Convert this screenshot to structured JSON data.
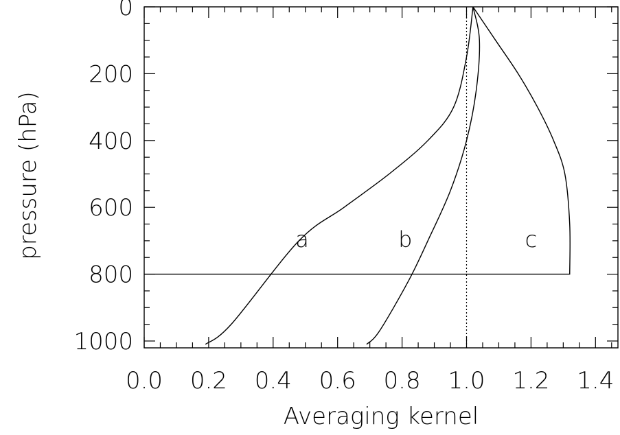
{
  "chart_data": {
    "type": "line",
    "xlabel": "Averaging kernel",
    "ylabel": "pressure (hPa)",
    "xlim": [
      0.0,
      1.5
    ],
    "ylim": [
      1020,
      0
    ],
    "y_inverted": true,
    "xticks": [
      "0.0",
      "0.2",
      "0.4",
      "0.6",
      "0.8",
      "1.0",
      "1.2",
      "1.4"
    ],
    "xtick_values": [
      0.0,
      0.2,
      0.4,
      0.6,
      0.8,
      1.0,
      1.2,
      1.4
    ],
    "yticks": [
      "0",
      "200",
      "400",
      "600",
      "800",
      "1000"
    ],
    "ytick_values": [
      0,
      200,
      400,
      600,
      800,
      1000
    ],
    "reference_lines": [
      {
        "orientation": "vertical",
        "x": 1.0,
        "style": "dotted"
      }
    ],
    "series": [
      {
        "name": "a",
        "x": [
          1.02,
          1.0,
          0.96,
          0.88,
          0.76,
          0.62,
          0.48,
          0.27,
          0.19
        ],
        "y": [
          0,
          150,
          300,
          400,
          500,
          600,
          700,
          950,
          1010
        ]
      },
      {
        "name": "b",
        "x": [
          1.02,
          1.04,
          1.03,
          1.0,
          0.95,
          0.88,
          0.82,
          0.73,
          0.69
        ],
        "y": [
          0,
          100,
          250,
          400,
          550,
          700,
          820,
          970,
          1010
        ]
      },
      {
        "name": "c",
        "x": [
          1.02,
          1.09,
          1.16,
          1.22,
          1.27,
          1.305,
          1.32,
          1.32,
          0.0
        ],
        "y": [
          0,
          100,
          200,
          300,
          400,
          500,
          650,
          800,
          800
        ]
      }
    ],
    "curve_labels": [
      {
        "text": "a",
        "x": 0.49,
        "y": 690
      },
      {
        "text": "b",
        "x": 0.81,
        "y": 690
      },
      {
        "text": "c",
        "x": 1.2,
        "y": 690
      }
    ]
  }
}
